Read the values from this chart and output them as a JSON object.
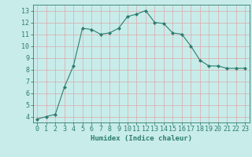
{
  "x": [
    0,
    1,
    2,
    3,
    4,
    5,
    6,
    7,
    8,
    9,
    10,
    11,
    12,
    13,
    14,
    15,
    16,
    17,
    18,
    19,
    20,
    21,
    22,
    23
  ],
  "y": [
    3.8,
    4.0,
    4.2,
    6.5,
    8.3,
    11.5,
    11.4,
    11.0,
    11.1,
    11.5,
    12.5,
    12.7,
    13.0,
    12.0,
    11.9,
    11.1,
    11.0,
    10.0,
    8.8,
    8.3,
    8.3,
    8.1,
    8.1,
    8.1
  ],
  "line_color": "#2d7d6e",
  "marker": "D",
  "marker_size": 2,
  "bg_color": "#c8ecea",
  "grid_color": "#dba8a8",
  "xlabel": "Humidex (Indice chaleur)",
  "xlim": [
    -0.5,
    23.5
  ],
  "ylim": [
    3.5,
    13.5
  ],
  "xticks": [
    0,
    1,
    2,
    3,
    4,
    5,
    6,
    7,
    8,
    9,
    10,
    11,
    12,
    13,
    14,
    15,
    16,
    17,
    18,
    19,
    20,
    21,
    22,
    23
  ],
  "yticks": [
    4,
    5,
    6,
    7,
    8,
    9,
    10,
    11,
    12,
    13
  ],
  "tick_color": "#2d7d6e",
  "label_color": "#2d7d6e",
  "xlabel_fontsize": 6.5,
  "tick_fontsize": 6
}
